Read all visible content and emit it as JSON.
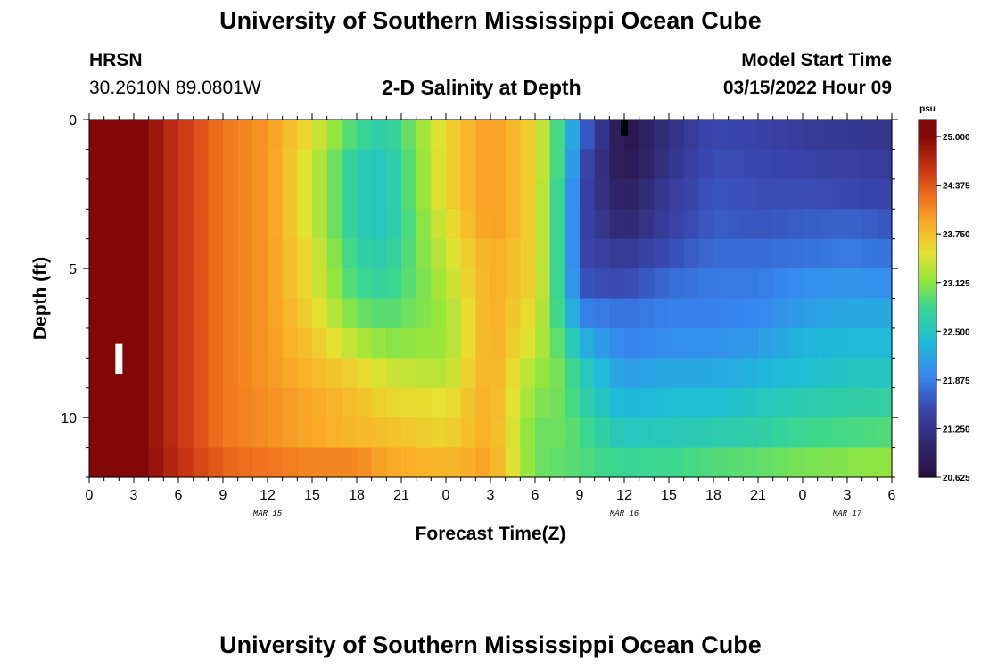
{
  "page": {
    "title": "University of Southern Mississippi Ocean Cube",
    "footer_title": "University of Southern Mississippi Ocean Cube",
    "station_code": "HRSN",
    "station_coords": "30.2610N  89.0801W",
    "plot_title": "2-D Salinity at Depth",
    "model_start_label": "Model Start Time",
    "model_start_value": "03/15/2022 Hour 09"
  },
  "chart_data": {
    "type": "heatmap",
    "title": "2-D Salinity at Depth",
    "xlabel": "Forecast Time(Z)",
    "ylabel": "Depth (ft)",
    "x_ticks": [
      {
        "hours": 0,
        "label": "0"
      },
      {
        "hours": 3,
        "label": "3"
      },
      {
        "hours": 6,
        "label": "6"
      },
      {
        "hours": 9,
        "label": "9"
      },
      {
        "hours": 12,
        "label": "12"
      },
      {
        "hours": 15,
        "label": "15"
      },
      {
        "hours": 18,
        "label": "18"
      },
      {
        "hours": 21,
        "label": "21"
      },
      {
        "hours": 24,
        "label": "0"
      },
      {
        "hours": 27,
        "label": "3"
      },
      {
        "hours": 30,
        "label": "6"
      },
      {
        "hours": 33,
        "label": "9"
      },
      {
        "hours": 36,
        "label": "12"
      },
      {
        "hours": 39,
        "label": "15"
      },
      {
        "hours": 42,
        "label": "18"
      },
      {
        "hours": 45,
        "label": "21"
      },
      {
        "hours": 48,
        "label": "0"
      },
      {
        "hours": 51,
        "label": "3"
      },
      {
        "hours": 54,
        "label": "6"
      }
    ],
    "date_labels": [
      {
        "hours": 12,
        "label": "MAR 15"
      },
      {
        "hours": 36,
        "label": "MAR 16"
      },
      {
        "hours": 51,
        "label": "MAR 17"
      }
    ],
    "y_ticks": [
      {
        "depth": 0,
        "label": "0"
      },
      {
        "depth": 5,
        "label": "5"
      },
      {
        "depth": 10,
        "label": "10"
      }
    ],
    "ylim": [
      0,
      12
    ],
    "colorbar": {
      "unit": "psu",
      "min": 20.625,
      "max": 25.0,
      "ticks": [
        "25.000",
        "24.375",
        "23.750",
        "23.125",
        "22.500",
        "21.875",
        "21.250",
        "20.625"
      ]
    },
    "markers": [
      {
        "hours": 2,
        "depth_top": 7.5,
        "depth_bottom": 8.5,
        "color": "#ffffff"
      },
      {
        "hours": 36,
        "depth_top": 0.0,
        "depth_bottom": 0.5,
        "color": "#000000"
      }
    ],
    "depth_levels": [
      0.5,
      1.5,
      2.5,
      3.5,
      4.5,
      5.5,
      6.5,
      7.5,
      8.5,
      9.5,
      10.5,
      11.5
    ],
    "profile_hours": [
      0,
      3,
      6,
      9,
      12,
      15,
      18,
      20,
      24,
      27,
      30,
      32,
      33,
      36,
      39,
      42,
      45,
      48,
      51,
      54
    ],
    "profile_values": [
      [
        25.2,
        25.2,
        25.2,
        25.2,
        25.2,
        25.2,
        25.2,
        25.2,
        25.2,
        25.2,
        25.2,
        25.2
      ],
      [
        25.1,
        25.1,
        25.1,
        25.1,
        25.1,
        25.1,
        25.1,
        25.1,
        25.1,
        25.1,
        25.1,
        25.1
      ],
      [
        24.6,
        24.6,
        24.6,
        24.6,
        24.6,
        24.6,
        24.6,
        24.6,
        24.6,
        24.6,
        24.6,
        24.65
      ],
      [
        24.2,
        24.2,
        24.2,
        24.2,
        24.2,
        24.2,
        24.2,
        24.2,
        24.2,
        24.2,
        24.2,
        24.3
      ],
      [
        24.0,
        24.0,
        24.0,
        24.0,
        24.0,
        24.0,
        24.0,
        24.0,
        24.0,
        24.05,
        24.05,
        24.2
      ],
      [
        23.5,
        23.4,
        23.4,
        23.4,
        23.5,
        23.5,
        23.6,
        23.7,
        23.8,
        23.9,
        23.9,
        24.1
      ],
      [
        22.8,
        22.6,
        22.6,
        22.6,
        22.7,
        22.8,
        23.0,
        23.3,
        23.6,
        23.75,
        23.8,
        24.1
      ],
      [
        22.6,
        22.5,
        22.5,
        22.5,
        22.6,
        22.7,
        22.9,
        23.1,
        23.4,
        23.6,
        23.75,
        23.9
      ],
      [
        23.6,
        23.6,
        23.6,
        23.5,
        23.4,
        23.3,
        23.2,
        23.2,
        23.3,
        23.5,
        23.6,
        23.8
      ],
      [
        24.0,
        24.0,
        24.0,
        24.0,
        23.9,
        23.9,
        23.9,
        23.9,
        23.9,
        23.9,
        23.9,
        23.95
      ],
      [
        23.6,
        23.6,
        23.6,
        23.6,
        23.6,
        23.6,
        23.5,
        23.4,
        23.2,
        23.1,
        23.0,
        23.0
      ],
      [
        22.6,
        22.6,
        22.5,
        22.5,
        22.5,
        22.5,
        22.6,
        22.8,
        23.0,
        23.0,
        23.0,
        22.95
      ],
      [
        21.8,
        21.6,
        21.5,
        21.5,
        21.5,
        21.6,
        21.9,
        22.3,
        22.6,
        22.7,
        22.85,
        22.9
      ],
      [
        20.7,
        20.75,
        20.9,
        21.05,
        21.3,
        21.5,
        21.8,
        21.9,
        22.1,
        22.3,
        22.5,
        22.75
      ],
      [
        21.2,
        21.25,
        21.35,
        21.4,
        21.55,
        21.75,
        21.9,
        22.0,
        22.2,
        22.4,
        22.55,
        22.8
      ],
      [
        21.5,
        21.55,
        21.6,
        21.65,
        21.75,
        21.85,
        21.9,
        22.0,
        22.2,
        22.4,
        22.6,
        22.9
      ],
      [
        21.45,
        21.5,
        21.55,
        21.6,
        21.75,
        21.85,
        21.95,
        22.1,
        22.3,
        22.5,
        22.65,
        22.95
      ],
      [
        21.35,
        21.45,
        21.55,
        21.65,
        21.8,
        22.0,
        22.1,
        22.3,
        22.4,
        22.6,
        22.8,
        23.05
      ],
      [
        21.3,
        21.4,
        21.5,
        21.7,
        21.85,
        22.05,
        22.2,
        22.35,
        22.5,
        22.65,
        22.85,
        23.1
      ],
      [
        21.25,
        21.35,
        21.45,
        21.6,
        21.8,
        22.0,
        22.2,
        22.35,
        22.5,
        22.7,
        22.9,
        23.15
      ]
    ]
  }
}
